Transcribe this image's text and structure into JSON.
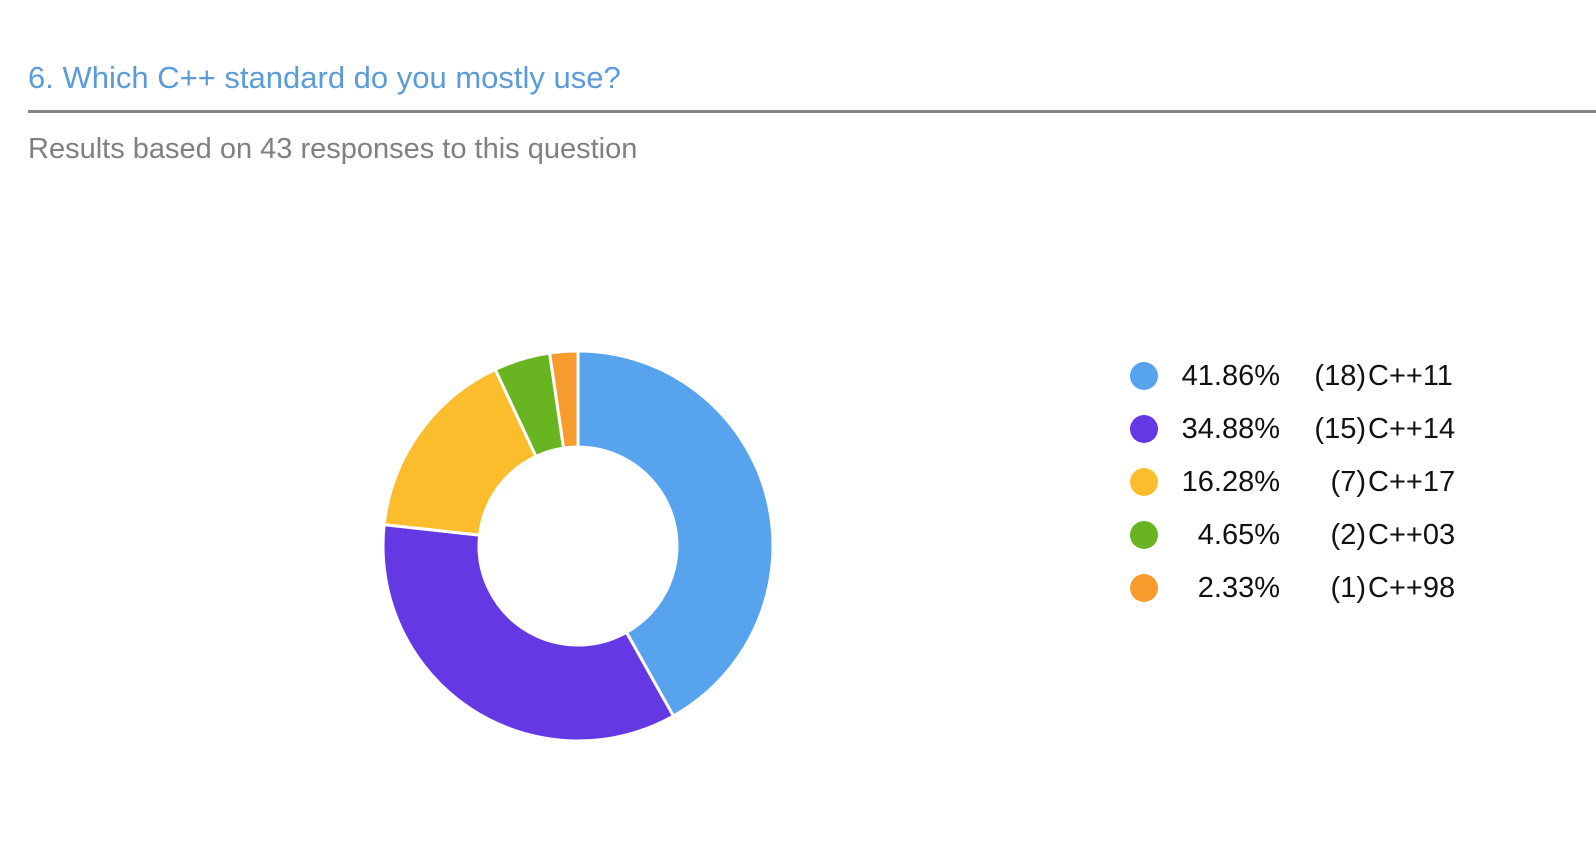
{
  "question": {
    "title": "6. Which C++ standard do you mostly use?",
    "subtitle": "Results based on 43 responses to this question"
  },
  "chart_data": {
    "type": "pie",
    "donut": true,
    "total_responses": 43,
    "legend_position": "right",
    "slices": [
      {
        "label": "C++11",
        "percent": 41.86,
        "percent_label": "41.86%",
        "count": 18,
        "count_label": "(18)",
        "color": "#57a3ee"
      },
      {
        "label": "C++14",
        "percent": 34.88,
        "percent_label": "34.88%",
        "count": 15,
        "count_label": "(15)",
        "color": "#6439e4"
      },
      {
        "label": "C++17",
        "percent": 16.28,
        "percent_label": "16.28%",
        "count": 7,
        "count_label": "(7)",
        "color": "#fbbd2b"
      },
      {
        "label": "C++03",
        "percent": 4.65,
        "percent_label": "4.65%",
        "count": 2,
        "count_label": "(2)",
        "color": "#68b421"
      },
      {
        "label": "C++98",
        "percent": 2.33,
        "percent_label": "2.33%",
        "count": 1,
        "count_label": "(1)",
        "color": "#f89c2f"
      }
    ]
  }
}
